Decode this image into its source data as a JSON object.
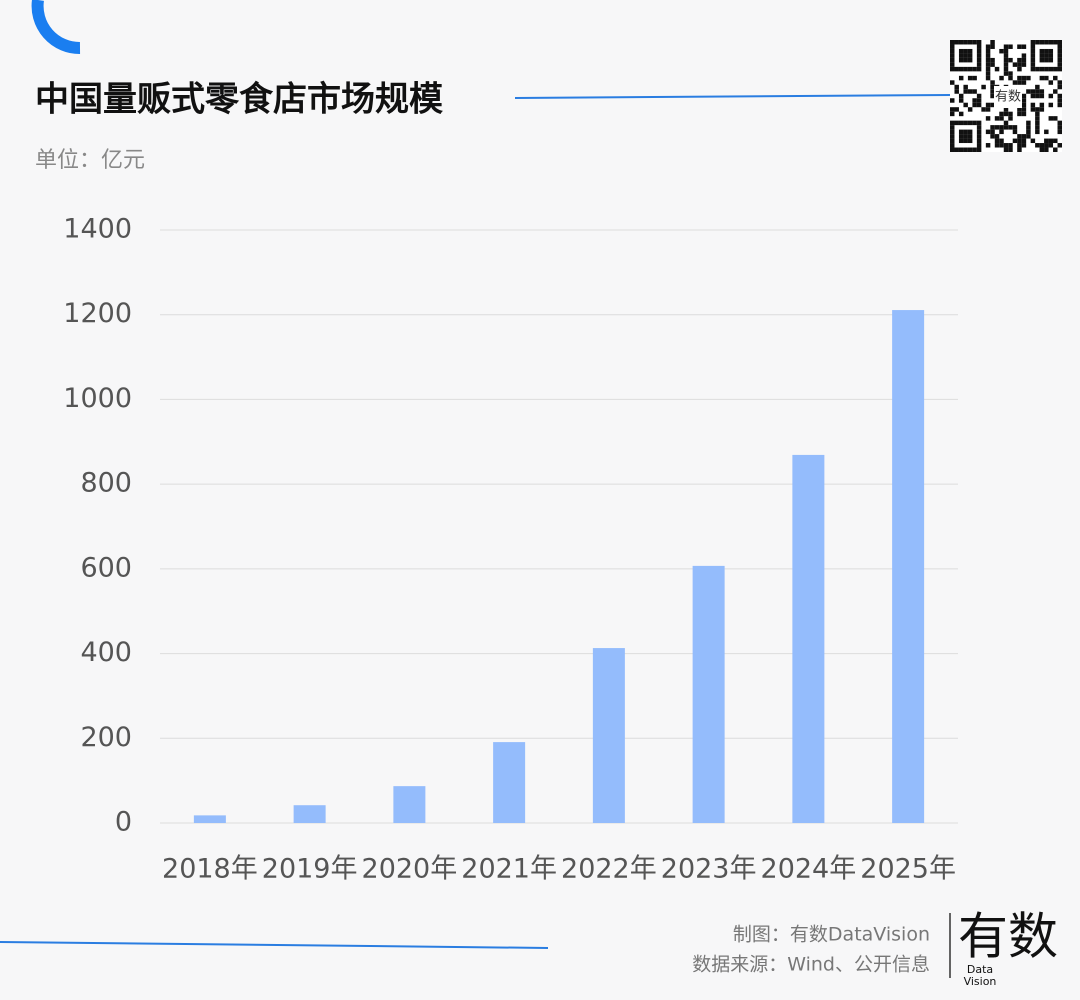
{
  "chart_data": {
    "type": "bar",
    "title": "中国量贩式零食店市场规模",
    "subtitle": "单位：亿元",
    "categories": [
      "2018年",
      "2019年",
      "2020年",
      "2021年",
      "2022年",
      "2023年",
      "2024年",
      "2025年"
    ],
    "values": [
      18,
      42,
      87,
      191,
      413,
      607,
      869,
      1211
    ],
    "color": "#94bcfc",
    "ylim": [
      0,
      1400
    ],
    "yticks": [
      0,
      200,
      400,
      600,
      800,
      1000,
      1200,
      1400
    ],
    "grid": true
  },
  "footer": {
    "maker": "制图：有数DataVision",
    "source": "数据来源：Wind、公开信息"
  },
  "logo": {
    "name": "有数",
    "sub1": "Data",
    "sub2": "Vision"
  },
  "qr": {
    "label": "有数"
  }
}
